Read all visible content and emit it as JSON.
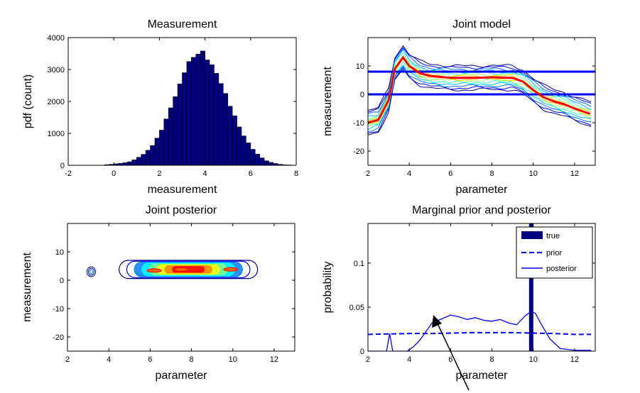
{
  "chart_data": [
    {
      "type": "bar",
      "title": "Measurement",
      "xlabel": "measurement",
      "ylabel": "pdf (count)",
      "xlim": [
        -2,
        8
      ],
      "ylim": [
        0,
        4000
      ],
      "xticks": [
        "-2",
        "0",
        "2",
        "4",
        "6",
        "8"
      ],
      "yticks": [
        "0",
        "1000",
        "2000",
        "3000",
        "4000"
      ],
      "bin_width": 0.2,
      "bin_centers": [
        -0.3,
        -0.1,
        0.1,
        0.3,
        0.5,
        0.7,
        0.9,
        1.1,
        1.3,
        1.5,
        1.7,
        1.9,
        2.1,
        2.3,
        2.5,
        2.7,
        2.9,
        3.1,
        3.3,
        3.5,
        3.7,
        3.9,
        4.1,
        4.3,
        4.5,
        4.7,
        4.9,
        5.1,
        5.3,
        5.5,
        5.7,
        5.9,
        6.1,
        6.3,
        6.5,
        6.7,
        6.9,
        7.1,
        7.3,
        7.5,
        7.7
      ],
      "values": [
        20,
        30,
        45,
        60,
        80,
        110,
        170,
        250,
        340,
        470,
        620,
        850,
        1100,
        1450,
        1800,
        2150,
        2550,
        2900,
        3250,
        3380,
        3480,
        3580,
        3300,
        3150,
        2880,
        2560,
        2250,
        1850,
        1550,
        1200,
        920,
        700,
        500,
        350,
        230,
        140,
        90,
        55,
        30,
        15,
        10
      ],
      "bar_color": "#000080"
    },
    {
      "type": "line",
      "title": "Joint model",
      "xlabel": "parameter",
      "ylabel": "measurement",
      "xlim": [
        2,
        13
      ],
      "ylim": [
        -25,
        20
      ],
      "xticks": [
        "2",
        "4",
        "6",
        "8",
        "10",
        "12"
      ],
      "yticks": [
        "-20",
        "-10",
        "0",
        "10"
      ],
      "hlines": [
        8,
        0
      ],
      "hline_color": "#0000ff",
      "mean_curve": {
        "x": [
          2,
          2.5,
          3,
          3.3,
          3.7,
          4,
          4.5,
          5,
          6,
          7,
          8,
          9,
          9.5,
          10,
          10.5,
          11,
          11.5,
          12,
          12.8
        ],
        "y": [
          -10,
          -9,
          -2,
          9,
          13,
          10,
          7.5,
          6.5,
          5.8,
          5.8,
          6,
          5.8,
          4.5,
          1.5,
          -1,
          -2.5,
          -3.5,
          -5,
          -7
        ]
      },
      "mean_color": "#ff0000",
      "band_colors": [
        "#00008b",
        "#0000ff",
        "#0070ff",
        "#00c0ff",
        "#40ffd0",
        "#a0ff60",
        "#ffd000"
      ]
    },
    {
      "type": "contour",
      "title": "Joint posterior",
      "xlabel": "parameter",
      "ylabel": "measurement",
      "xlim": [
        2,
        13
      ],
      "ylim": [
        -25,
        20
      ],
      "xticks": [
        "2",
        "4",
        "6",
        "8",
        "10",
        "12"
      ],
      "yticks": [
        "-20",
        "-10",
        "0",
        "10"
      ],
      "blobs": [
        {
          "x_from": 4.5,
          "x_to": 11.2,
          "y_center": 3.8
        },
        {
          "x_from": 2.9,
          "x_to": 3.4,
          "y_center": 3.0
        }
      ]
    },
    {
      "type": "line",
      "title": "Marginal prior and posterior",
      "xlabel": "parameter",
      "ylabel": "probability",
      "xlim": [
        2,
        13
      ],
      "ylim": [
        0,
        0.145
      ],
      "xticks": [
        "2",
        "4",
        "6",
        "8",
        "10",
        "12"
      ],
      "yticks": [
        "0",
        "0.05",
        "0.1"
      ],
      "true_value": 9.9,
      "series": [
        {
          "name": "true",
          "style": "bar"
        },
        {
          "name": "prior",
          "style": "dashed",
          "x": [
            2,
            3,
            4,
            5,
            6,
            7,
            8,
            9,
            10,
            11,
            12,
            12.8
          ],
          "y": [
            0.019,
            0.0195,
            0.02,
            0.02,
            0.0205,
            0.021,
            0.021,
            0.021,
            0.0205,
            0.02,
            0.019,
            0.019
          ]
        },
        {
          "name": "posterior",
          "style": "solid",
          "x": [
            2,
            2.9,
            3.05,
            3.2,
            3.9,
            4.2,
            4.5,
            4.8,
            5.1,
            5.5,
            6,
            6.4,
            6.8,
            7.2,
            7.6,
            8,
            8.4,
            8.8,
            9.2,
            9.6,
            9.9,
            10.1,
            10.4,
            10.8,
            11.3,
            12,
            12.8
          ],
          "y": [
            0,
            0,
            0.02,
            0,
            0,
            0.005,
            0.012,
            0.022,
            0.032,
            0.036,
            0.041,
            0.039,
            0.036,
            0.038,
            0.035,
            0.034,
            0.036,
            0.032,
            0.03,
            0.04,
            0.045,
            0.043,
            0.03,
            0.014,
            0.003,
            0.001,
            0.001
          ]
        }
      ],
      "line_color": "#0000ff",
      "true_color": "#000080",
      "legend_position": "top-right"
    }
  ]
}
